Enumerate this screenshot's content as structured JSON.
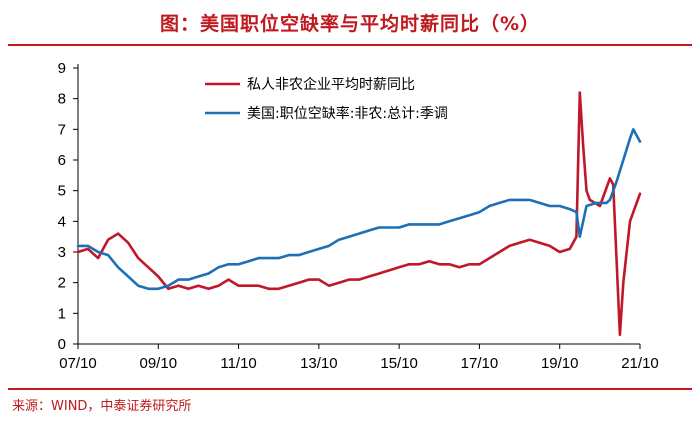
{
  "title": "图：美国职位空缺率与平均时薪同比（%）",
  "source": "来源：WIND，中泰证券研究所",
  "colors": {
    "series1": "#c0182a",
    "series2": "#1f6fb4",
    "accent": "#c0191f"
  },
  "chart_data": {
    "type": "line",
    "title": "图：美国职位空缺率与平均时薪同比（%）",
    "xlabel": "",
    "ylabel": "",
    "xlim": [
      "2007-10",
      "2021-10"
    ],
    "ylim": [
      0,
      9
    ],
    "y_ticks": [
      "0",
      "1",
      "2",
      "3",
      "4",
      "5",
      "6",
      "7",
      "8",
      "9"
    ],
    "x_ticks": [
      "07/10",
      "09/10",
      "11/10",
      "13/10",
      "15/10",
      "17/10",
      "19/10",
      "21/10"
    ],
    "grid": false,
    "legend_position": "top-center",
    "series": [
      {
        "name": "私人非农企业平均时薪同比",
        "color": "#c0182a",
        "x": [
          "2007-10",
          "2008-01",
          "2008-04",
          "2008-07",
          "2008-10",
          "2009-01",
          "2009-04",
          "2009-07",
          "2009-10",
          "2010-01",
          "2010-04",
          "2010-07",
          "2010-10",
          "2011-01",
          "2011-04",
          "2011-07",
          "2011-10",
          "2012-01",
          "2012-04",
          "2012-07",
          "2012-10",
          "2013-01",
          "2013-04",
          "2013-07",
          "2013-10",
          "2014-01",
          "2014-04",
          "2014-07",
          "2014-10",
          "2015-01",
          "2015-04",
          "2015-07",
          "2015-10",
          "2016-01",
          "2016-04",
          "2016-07",
          "2016-10",
          "2017-01",
          "2017-04",
          "2017-07",
          "2017-10",
          "2018-01",
          "2018-04",
          "2018-07",
          "2018-10",
          "2019-01",
          "2019-04",
          "2019-07",
          "2019-10",
          "2020-01",
          "2020-03",
          "2020-04",
          "2020-05",
          "2020-06",
          "2020-07",
          "2020-10",
          "2021-01",
          "2021-02",
          "2021-04",
          "2021-05",
          "2021-07",
          "2021-10"
        ],
        "values": [
          3.0,
          3.1,
          2.8,
          3.4,
          3.6,
          3.3,
          2.8,
          2.5,
          2.2,
          1.8,
          1.9,
          1.8,
          1.9,
          1.8,
          1.9,
          2.1,
          1.9,
          1.9,
          1.9,
          1.8,
          1.8,
          1.9,
          2.0,
          2.1,
          2.1,
          1.9,
          2.0,
          2.1,
          2.1,
          2.2,
          2.3,
          2.4,
          2.5,
          2.6,
          2.6,
          2.7,
          2.6,
          2.6,
          2.5,
          2.6,
          2.6,
          2.8,
          3.0,
          3.2,
          3.3,
          3.4,
          3.3,
          3.2,
          3.0,
          3.1,
          3.5,
          8.2,
          6.5,
          5.0,
          4.7,
          4.5,
          5.4,
          5.2,
          0.3,
          2.0,
          4.0,
          4.9
        ]
      },
      {
        "name": "美国:职位空缺率:非农:总计:季调",
        "color": "#1f6fb4",
        "x": [
          "2007-10",
          "2008-01",
          "2008-04",
          "2008-07",
          "2008-10",
          "2009-01",
          "2009-04",
          "2009-07",
          "2009-10",
          "2010-01",
          "2010-04",
          "2010-07",
          "2010-10",
          "2011-01",
          "2011-04",
          "2011-07",
          "2011-10",
          "2012-01",
          "2012-04",
          "2012-07",
          "2012-10",
          "2013-01",
          "2013-04",
          "2013-07",
          "2013-10",
          "2014-01",
          "2014-04",
          "2014-07",
          "2014-10",
          "2015-01",
          "2015-04",
          "2015-07",
          "2015-10",
          "2016-01",
          "2016-04",
          "2016-07",
          "2016-10",
          "2017-01",
          "2017-04",
          "2017-07",
          "2017-10",
          "2018-01",
          "2018-04",
          "2018-07",
          "2018-10",
          "2019-01",
          "2019-04",
          "2019-07",
          "2019-10",
          "2020-01",
          "2020-03",
          "2020-04",
          "2020-06",
          "2020-09",
          "2020-12",
          "2021-01",
          "2021-03",
          "2021-05",
          "2021-07",
          "2021-08",
          "2021-10"
        ],
        "values": [
          3.2,
          3.2,
          3.0,
          2.9,
          2.5,
          2.2,
          1.9,
          1.8,
          1.8,
          1.9,
          2.1,
          2.1,
          2.2,
          2.3,
          2.5,
          2.6,
          2.6,
          2.7,
          2.8,
          2.8,
          2.8,
          2.9,
          2.9,
          3.0,
          3.1,
          3.2,
          3.4,
          3.5,
          3.6,
          3.7,
          3.8,
          3.8,
          3.8,
          3.9,
          3.9,
          3.9,
          3.9,
          4.0,
          4.1,
          4.2,
          4.3,
          4.5,
          4.6,
          4.7,
          4.7,
          4.7,
          4.6,
          4.5,
          4.5,
          4.4,
          4.3,
          3.5,
          4.5,
          4.6,
          4.6,
          4.7,
          5.3,
          6.0,
          6.7,
          7.0,
          6.6
        ]
      }
    ]
  }
}
